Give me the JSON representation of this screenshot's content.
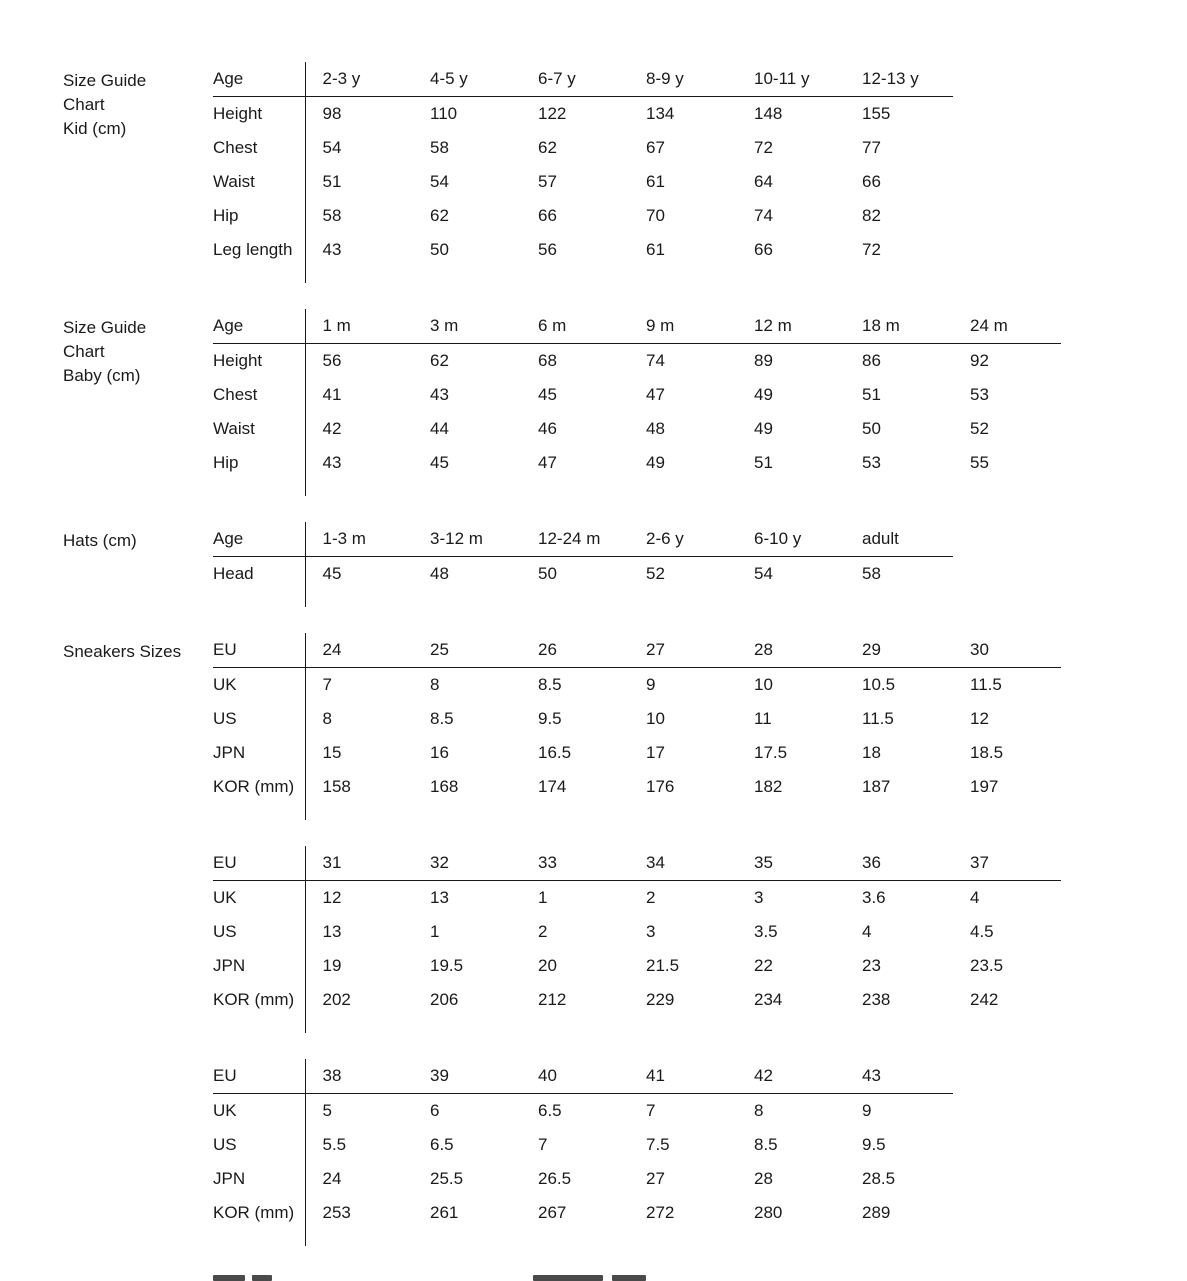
{
  "sections": [
    {
      "title_lines": [
        "Size Guide",
        "Chart",
        "Kid (cm)"
      ],
      "table": {
        "header_label": "Age",
        "columns": [
          "2-3 y",
          "4-5 y",
          "6-7 y",
          "8-9 y",
          "10-11 y",
          "12-13 y"
        ],
        "rows": [
          {
            "label": "Height",
            "values": [
              "98",
              "110",
              "122",
              "134",
              "148",
              "155"
            ]
          },
          {
            "label": "Chest",
            "values": [
              "54",
              "58",
              "62",
              "67",
              "72",
              "77"
            ]
          },
          {
            "label": "Waist",
            "values": [
              "51",
              "54",
              "57",
              "61",
              "64",
              "66"
            ]
          },
          {
            "label": "Hip",
            "values": [
              "58",
              "62",
              "66",
              "70",
              "74",
              "82"
            ]
          },
          {
            "label": "Leg length",
            "values": [
              "43",
              "50",
              "56",
              "61",
              "66",
              "72"
            ]
          }
        ]
      }
    },
    {
      "title_lines": [
        "Size Guide",
        "Chart",
        "Baby (cm)"
      ],
      "table": {
        "header_label": "Age",
        "columns": [
          "1 m",
          "3 m",
          "6 m",
          "9 m",
          "12 m",
          "18 m",
          "24 m"
        ],
        "rows": [
          {
            "label": "Height",
            "values": [
              "56",
              "62",
              "68",
              "74",
              "89",
              "86",
              "92"
            ]
          },
          {
            "label": "Chest",
            "values": [
              "41",
              "43",
              "45",
              "47",
              "49",
              "51",
              "53"
            ]
          },
          {
            "label": "Waist",
            "values": [
              "42",
              "44",
              "46",
              "48",
              "49",
              "50",
              "52"
            ]
          },
          {
            "label": "Hip",
            "values": [
              "43",
              "45",
              "47",
              "49",
              "51",
              "53",
              "55"
            ]
          }
        ]
      }
    },
    {
      "title_lines": [
        "Hats (cm)"
      ],
      "table": {
        "header_label": "Age",
        "columns": [
          "1-3 m",
          "3-12 m",
          "12-24 m",
          "2-6 y",
          "6-10 y",
          "adult"
        ],
        "rows": [
          {
            "label": "Head",
            "values": [
              "45",
              "48",
              "50",
              "52",
              "54",
              "58"
            ]
          }
        ]
      }
    },
    {
      "title_lines": [
        "Sneakers Sizes"
      ],
      "table": {
        "header_label": "EU",
        "columns": [
          "24",
          "25",
          "26",
          "27",
          "28",
          "29",
          "30"
        ],
        "rows": [
          {
            "label": "UK",
            "values": [
              "7",
              "8",
              "8.5",
              "9",
              "10",
              "10.5",
              "11.5"
            ]
          },
          {
            "label": "US",
            "values": [
              "8",
              "8.5",
              "9.5",
              "10",
              "11",
              "11.5",
              "12"
            ]
          },
          {
            "label": "JPN",
            "values": [
              "15",
              "16",
              "16.5",
              "17",
              "17.5",
              "18",
              "18.5"
            ]
          },
          {
            "label": "KOR (mm)",
            "values": [
              "158",
              "168",
              "174",
              "176",
              "182",
              "187",
              "197"
            ]
          }
        ]
      }
    },
    {
      "title_lines": [],
      "table": {
        "header_label": "EU",
        "columns": [
          "31",
          "32",
          "33",
          "34",
          "35",
          "36",
          "37"
        ],
        "rows": [
          {
            "label": "UK",
            "values": [
              "12",
              "13",
              "1",
              "2",
              "3",
              "3.6",
              "4"
            ]
          },
          {
            "label": "US",
            "values": [
              "13",
              "1",
              "2",
              "3",
              "3.5",
              "4",
              "4.5"
            ]
          },
          {
            "label": "JPN",
            "values": [
              "19",
              "19.5",
              "20",
              "21.5",
              "22",
              "23",
              "23.5"
            ]
          },
          {
            "label": "KOR (mm)",
            "values": [
              "202",
              "206",
              "212",
              "229",
              "234",
              "238",
              "242"
            ]
          }
        ]
      }
    },
    {
      "title_lines": [],
      "table": {
        "header_label": "EU",
        "columns": [
          "38",
          "39",
          "40",
          "41",
          "42",
          "43"
        ],
        "rows": [
          {
            "label": "UK",
            "values": [
              "5",
              "6",
              "6.5",
              "7",
              "8",
              "9"
            ]
          },
          {
            "label": "US",
            "values": [
              "5.5",
              "6.5",
              "7",
              "7.5",
              "8.5",
              "9.5"
            ]
          },
          {
            "label": "JPN",
            "values": [
              "24",
              "25.5",
              "26.5",
              "27",
              "28",
              "28.5"
            ]
          },
          {
            "label": "KOR (mm)",
            "values": [
              "253",
              "261",
              "267",
              "272",
              "280",
              "289"
            ]
          }
        ]
      }
    }
  ],
  "colors": {
    "background": "#ffffff",
    "text": "#1a1a1a",
    "rule": "#1a1a1a"
  }
}
